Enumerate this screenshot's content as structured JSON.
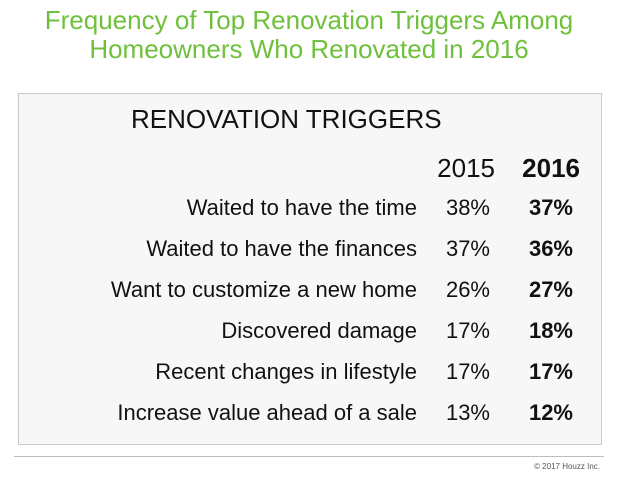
{
  "title_line1": "Frequency of Top Renovation Triggers Among",
  "title_line2": "Homeowners Who Renovated in 2016",
  "copyright": "© 2017 Houzz Inc.",
  "colors": {
    "title": "#6fc03c",
    "panel_background": "#f7f7f7",
    "text": "#111111"
  },
  "chart_data": {
    "type": "table",
    "title": "RENOVATION TRIGGERS",
    "columns": [
      "2015",
      "2016"
    ],
    "rows": [
      {
        "label": "Waited to have the time",
        "v2015": "38%",
        "v2016": "37%"
      },
      {
        "label": "Waited to have the finances",
        "v2015": "37%",
        "v2016": "36%"
      },
      {
        "label": "Want to customize a new home",
        "v2015": "26%",
        "v2016": "27%"
      },
      {
        "label": "Discovered damage",
        "v2015": "17%",
        "v2016": "18%"
      },
      {
        "label": "Recent changes in lifestyle",
        "v2015": "17%",
        "v2016": "17%"
      },
      {
        "label": "Increase value ahead of a sale",
        "v2015": "13%",
        "v2016": "12%"
      }
    ]
  }
}
